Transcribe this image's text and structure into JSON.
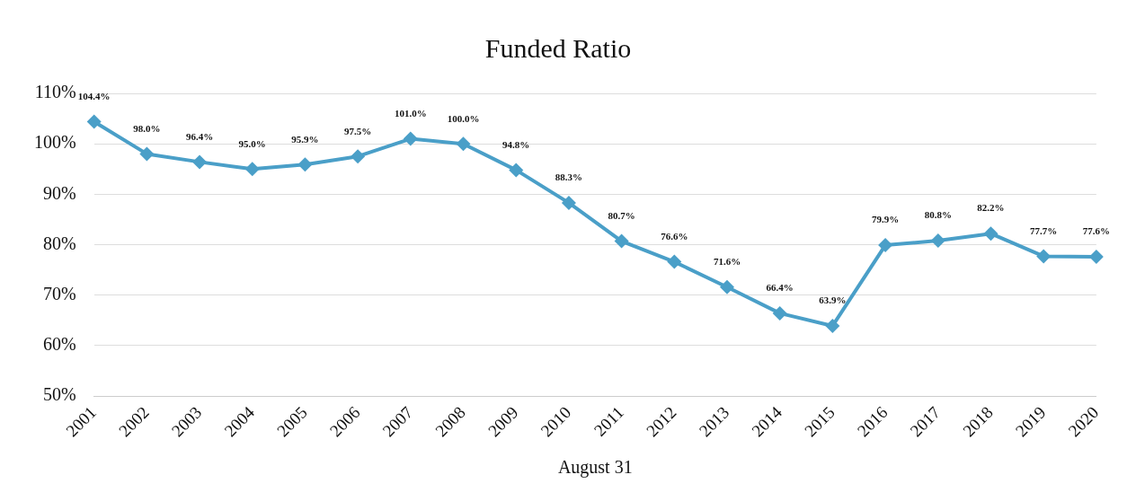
{
  "chart_data": {
    "type": "line",
    "title": "Funded Ratio",
    "xlabel": "August 31",
    "categories": [
      "2001",
      "2002",
      "2003",
      "2004",
      "2005",
      "2006",
      "2007",
      "2008",
      "2009",
      "2010",
      "2011",
      "2012",
      "2013",
      "2014",
      "2015",
      "2016",
      "2017",
      "2018",
      "2019",
      "2020"
    ],
    "series": [
      {
        "color": "#4a9fc8",
        "values": [
          104.4,
          98.0,
          96.4,
          95.0,
          95.9,
          97.5,
          101.0,
          100.0,
          94.8,
          88.3,
          80.7,
          76.6,
          71.6,
          66.4,
          63.9,
          79.9,
          80.8,
          82.2,
          77.7,
          77.6
        ],
        "value_labels": [
          "104.4%",
          "98.0%",
          "96.4%",
          "95.0%",
          "95.9%",
          "97.5%",
          "101.0%",
          "100.0%",
          "94.8%",
          "88.3%",
          "80.7%",
          "76.6%",
          "71.6%",
          "66.4%",
          "63.9%",
          "79.9%",
          "80.8%",
          "82.2%",
          "77.7%",
          "77.6%"
        ]
      }
    ],
    "ylim": [
      50,
      110
    ],
    "yticks": [
      {
        "value": 50,
        "label": "50%"
      },
      {
        "value": 60,
        "label": "60%"
      },
      {
        "value": 70,
        "label": "70%"
      },
      {
        "value": 80,
        "label": "80%"
      },
      {
        "value": 90,
        "label": "90%"
      },
      {
        "value": 100,
        "label": "100%"
      },
      {
        "value": 110,
        "label": "110%"
      }
    ],
    "grid": "y",
    "legend": false,
    "marker": "diamond",
    "line_style": "solid"
  }
}
